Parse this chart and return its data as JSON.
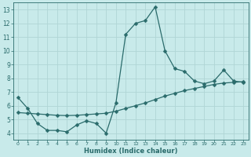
{
  "xlabel": "Humidex (Indice chaleur)",
  "bg_color": "#c8eaea",
  "grid_color": "#b0d5d5",
  "line_color": "#2a6b6b",
  "xlim": [
    -0.5,
    23.5
  ],
  "ylim": [
    3.5,
    13.5
  ],
  "xticks": [
    0,
    1,
    2,
    3,
    4,
    5,
    6,
    7,
    8,
    9,
    10,
    11,
    12,
    13,
    14,
    15,
    16,
    17,
    18,
    19,
    20,
    21,
    22,
    23
  ],
  "yticks": [
    4,
    5,
    6,
    7,
    8,
    9,
    10,
    11,
    12,
    13
  ],
  "line1_x": [
    0,
    1,
    2,
    3,
    4,
    5,
    6,
    7,
    8,
    9,
    10,
    11,
    12,
    13,
    14,
    15,
    16,
    17,
    18,
    19,
    20,
    21,
    22,
    23
  ],
  "line1_y": [
    6.6,
    5.8,
    4.7,
    4.2,
    4.2,
    4.1,
    4.6,
    4.9,
    4.7,
    4.0,
    6.2,
    11.2,
    12.0,
    12.2,
    13.2,
    10.0,
    8.7,
    8.5,
    7.8,
    7.6,
    7.8,
    8.6,
    7.8,
    7.7
  ],
  "line2_x": [
    0,
    1,
    2,
    3,
    4,
    5,
    6,
    7,
    8,
    9,
    10,
    11,
    12,
    13,
    14,
    15,
    16,
    17,
    18,
    19,
    20,
    21,
    22,
    23
  ],
  "line2_y": [
    5.5,
    5.45,
    5.4,
    5.35,
    5.3,
    5.28,
    5.3,
    5.35,
    5.4,
    5.45,
    5.6,
    5.8,
    6.0,
    6.2,
    6.45,
    6.7,
    6.9,
    7.1,
    7.25,
    7.4,
    7.55,
    7.65,
    7.7,
    7.75
  ],
  "markersize": 2.5,
  "linewidth": 0.9
}
